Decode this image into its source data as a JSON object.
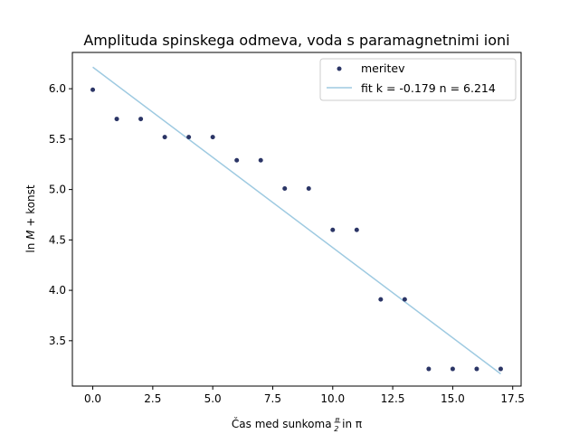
{
  "chart_data": {
    "type": "scatter",
    "title": "Amplituda spinskega odmeva, voda s paramagnetnimi ioni",
    "xlabel": {
      "prefix": "Čas med sunkoma ",
      "frac_num": "π",
      "frac_den": "2",
      "suffix": " in π"
    },
    "ylabel": {
      "prefix": "ln ",
      "var": "M",
      "suffix": " + konst"
    },
    "xlim": [
      -0.85,
      17.85
    ],
    "ylim": [
      3.05,
      6.36
    ],
    "xticks": [
      0.0,
      2.5,
      5.0,
      7.5,
      10.0,
      12.5,
      15.0,
      17.5
    ],
    "xtick_labels": [
      "0.0",
      "2.5",
      "5.0",
      "7.5",
      "10.0",
      "12.5",
      "15.0",
      "17.5"
    ],
    "yticks": [
      3.5,
      4.0,
      4.5,
      5.0,
      5.5,
      6.0
    ],
    "ytick_labels": [
      "3.5",
      "4.0",
      "4.5",
      "5.0",
      "5.5",
      "6.0"
    ],
    "grid": false,
    "legend_position": "top-right",
    "series": [
      {
        "name": "meritev",
        "kind": "scatter",
        "color": "#2b3566",
        "x": [
          0,
          1,
          2,
          3,
          4,
          5,
          6,
          7,
          8,
          9,
          10,
          11,
          12,
          13,
          14,
          15,
          16,
          17
        ],
        "y": [
          5.99,
          5.7,
          5.7,
          5.52,
          5.52,
          5.52,
          5.29,
          5.29,
          5.01,
          5.01,
          4.6,
          4.6,
          3.91,
          3.91,
          3.22,
          3.22,
          3.22,
          3.22
        ]
      },
      {
        "name": "fit k = -0.179 n = 6.214",
        "kind": "line",
        "color": "#9ecae1",
        "slope": -0.179,
        "intercept": 6.214,
        "x_range": [
          0,
          17
        ]
      }
    ]
  }
}
